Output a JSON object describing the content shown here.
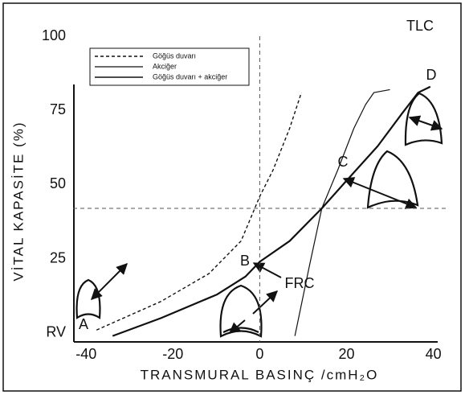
{
  "chart_data": {
    "type": "line",
    "x_label": "TRANSMURAL BASINÇ /cmH₂O",
    "y_label": "VİTAL KAPASİTE (%)",
    "xlim": [
      -43,
      41
    ],
    "ylim": [
      -3,
      100
    ],
    "xticks": [
      -40,
      -20,
      0,
      20,
      40
    ],
    "yticks": [
      {
        "value": 0,
        "label": "RV"
      },
      25,
      50,
      75,
      100
    ],
    "reference_lines": {
      "x": 0,
      "y": 42
    },
    "series": [
      {
        "name": "Göğüs duvarı",
        "color": "#111111",
        "dashed": true,
        "width": 1.4,
        "x": [
          -37.6,
          -22.8,
          -11.7,
          -4.3,
          0,
          3.1,
          6.9,
          9.6
        ],
        "values": [
          1,
          10.6,
          20,
          31,
          46,
          55,
          69,
          81
        ]
      },
      {
        "name": "Akciğer",
        "color": "#111111",
        "dashed": false,
        "width": 1.2,
        "x": [
          8.1,
          11.5,
          14.3,
          18,
          21.7,
          24.4,
          26.3,
          30
        ],
        "values": [
          -1,
          23,
          42,
          55,
          69,
          77,
          81,
          82
        ]
      },
      {
        "name": "Göğüs duvarı + akciğer",
        "color": "#111111",
        "dashed": false,
        "width": 2.2,
        "x": [
          -33.9,
          -22.8,
          -9.8,
          -3.3,
          0,
          6.9,
          14.3,
          19.8,
          27.2,
          32.8,
          36.5,
          39.3
        ],
        "values": [
          -1,
          5,
          13,
          19,
          24,
          31,
          42,
          51,
          63,
          74,
          81,
          83
        ]
      }
    ],
    "annotations": [
      "TLC",
      "A",
      "B",
      "FRC",
      "C",
      "D"
    ]
  }
}
